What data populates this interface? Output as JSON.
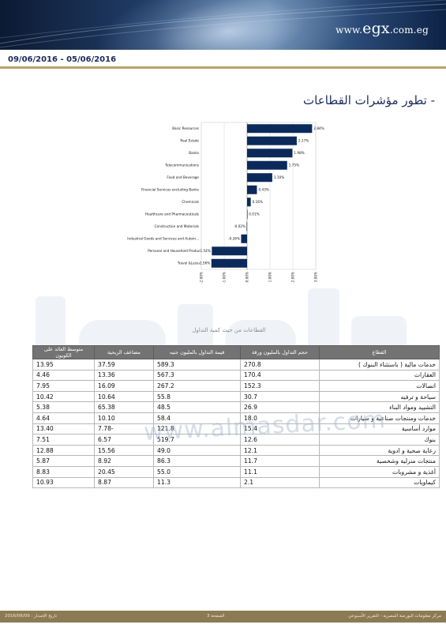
{
  "header": {
    "logo_main": "egx",
    "logo_prefix": "www.",
    "logo_suffix": ".com.eg"
  },
  "date_range": "09/06/2016 - 05/06/2016",
  "section_title": "- تطور مؤشرات القطاعات",
  "chart_data": {
    "type": "bar",
    "orientation": "horizontal",
    "categories": [
      "Basic Resources",
      "Real Estate",
      "Banks",
      "Telecommunications",
      "Food and Beverage",
      "Financial Services excluding Banks",
      "Chemicals",
      "Healthcare and Pharmaceuticals",
      "Construction and Materials",
      "Industrial Goods and Services and Autom...",
      "Personal and Household Produc",
      "Travel &Leisu"
    ],
    "values": [
      2.84,
      2.17,
      1.98,
      1.75,
      1.1,
      0.43,
      0.16,
      0.01,
      -0.02,
      -0.26,
      -1.54,
      -1.56
    ],
    "value_labels": [
      "2.84%",
      "2.17%",
      "1.98%",
      "1.75%",
      "1.10%",
      "0.43%",
      "0.16%",
      "0.01%",
      "-0.02%",
      "-0.26%",
      "-1.54%",
      "-1.56%"
    ],
    "xlim": [
      -2,
      3
    ],
    "x_ticks": [
      "-2.00%",
      "-1.00%",
      "0.00%",
      "1.00%",
      "2.00%",
      "3.00%"
    ],
    "bar_color": "#0b2a5b",
    "grid": true
  },
  "table": {
    "caption": "القطاعات من حيث كمية التداول",
    "headers": [
      "القطاع",
      "حجم التداول بالمليون ورقة",
      "قيمة التداول بالمليون جنيه",
      "مضاعف الربحية",
      "متوسط العائد على الكوبون"
    ],
    "rows": [
      {
        "sector": "خدمات مالية ( باستثناء البنوك )",
        "volume": "270.8",
        "value": "589.3",
        "pe": "37.59",
        "yield": "13.95"
      },
      {
        "sector": "العقارات",
        "volume": "170.4",
        "value": "567.3",
        "pe": "13.36",
        "yield": "4.46"
      },
      {
        "sector": "اتصالات",
        "volume": "152.3",
        "value": "267.2",
        "pe": "16.09",
        "yield": "7.95"
      },
      {
        "sector": "سياحة و ترفيه",
        "volume": "30.7",
        "value": "55.8",
        "pe": "10.64",
        "yield": "10.42"
      },
      {
        "sector": "التشييد ومواد البناء",
        "volume": "26.9",
        "value": "48.5",
        "pe": "65.38",
        "yield": "5.38"
      },
      {
        "sector": "خدمات ومنتجات صناعية و سيارات",
        "volume": "18.0",
        "value": "58.4",
        "pe": "10.10",
        "yield": "4.64"
      },
      {
        "sector": "موارد أساسية",
        "volume": "15.4",
        "value": "121.8",
        "pe": "7.78-",
        "yield": "13.40"
      },
      {
        "sector": "بنوك",
        "volume": "12.6",
        "value": "519.7",
        "pe": "6.57",
        "yield": "7.51"
      },
      {
        "sector": "رعاية صحية و ادوية",
        "volume": "12.1",
        "value": "49.0",
        "pe": "15.56",
        "yield": "12.88"
      },
      {
        "sector": "منتجات منزلية وشخصية",
        "volume": "11.7",
        "value": "86.3",
        "pe": "8.92",
        "yield": "5.87"
      },
      {
        "sector": "أغذية و مشروبات",
        "volume": "11.1",
        "value": "55.0",
        "pe": "20.45",
        "yield": "8.83"
      },
      {
        "sector": "كيماويات",
        "volume": "2.1",
        "value": "11.3",
        "pe": "8.87",
        "yield": "10.93"
      }
    ]
  },
  "watermark_url": "www.almasdar.com",
  "footer": {
    "issue_date": "تاريخ الإصدار : 2016/06/09",
    "page": "الصفحة 3",
    "publisher": "مركز معلومات البورصة المصرية - التقرير الأسبوعي"
  }
}
